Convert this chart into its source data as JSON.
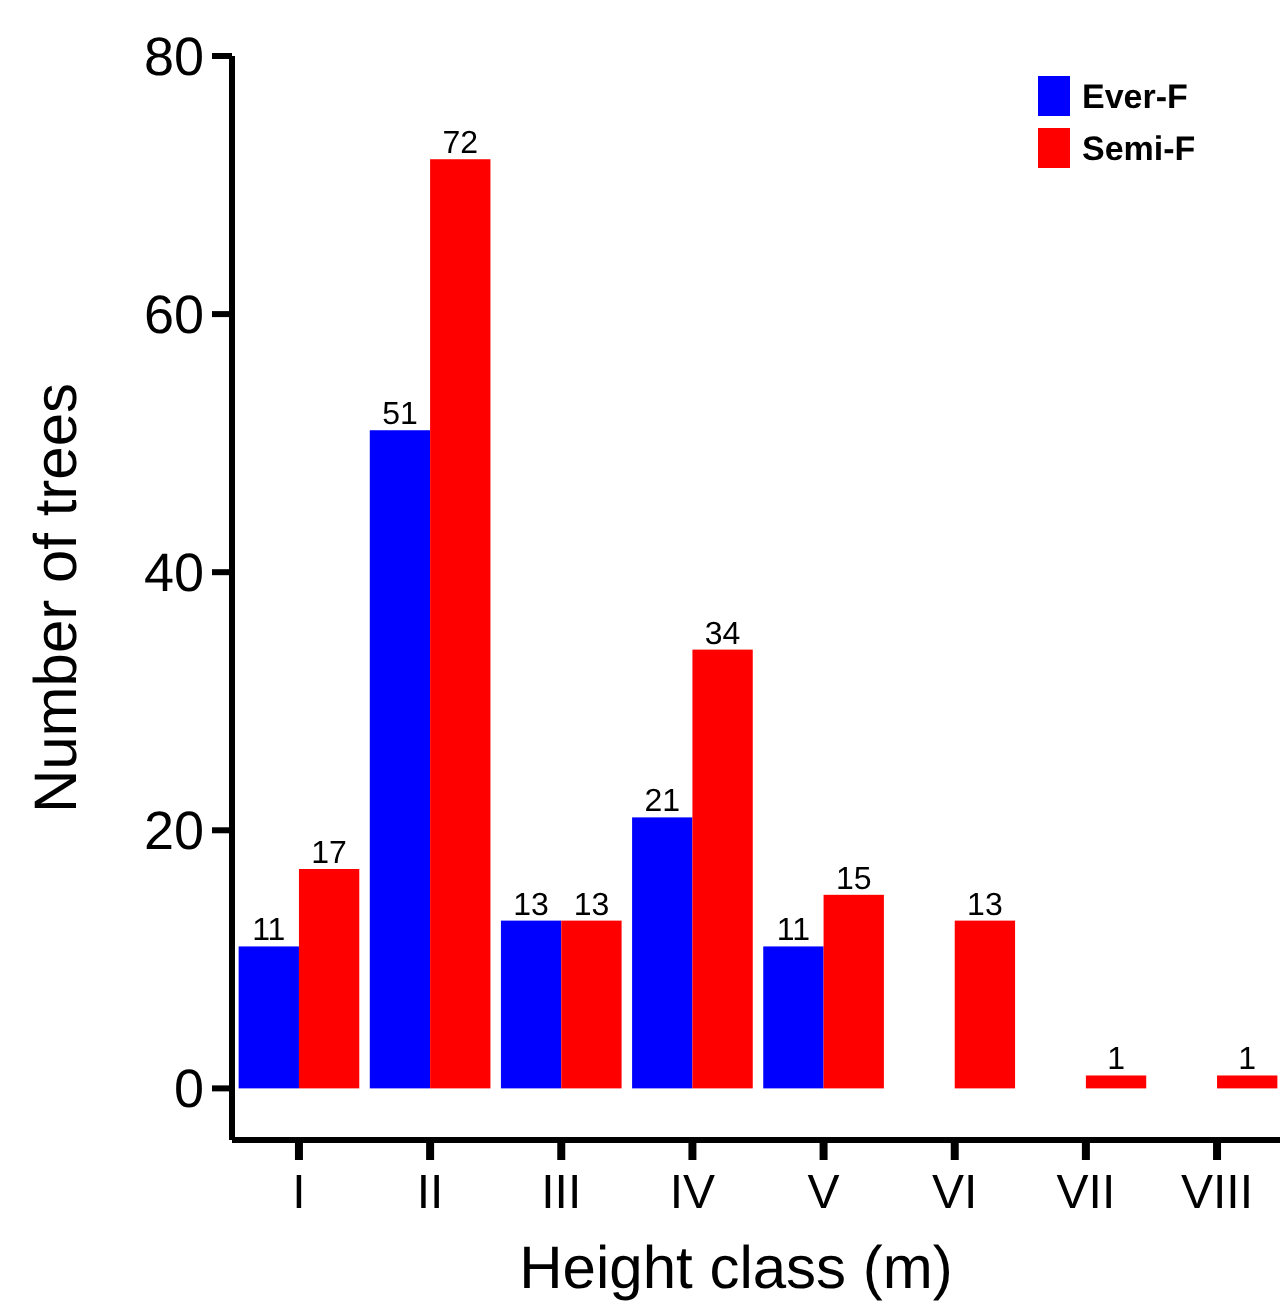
{
  "chart_data": {
    "type": "bar",
    "xlabel": "Height class (m)",
    "ylabel": "Number of trees",
    "categories": [
      "I",
      "II",
      "III",
      "IV",
      "V",
      "VI",
      "VII",
      "VIII"
    ],
    "series": [
      {
        "name": "Ever-F",
        "color": "#0000ff",
        "values": [
          11,
          51,
          13,
          21,
          11,
          null,
          null,
          null
        ]
      },
      {
        "name": "Semi-F",
        "color": "#ff0000",
        "values": [
          17,
          72,
          13,
          34,
          15,
          13,
          1,
          1
        ]
      }
    ],
    "ylim": [
      -4,
      80
    ],
    "yticks": [
      0,
      20,
      40,
      60,
      80
    ],
    "grid": false,
    "legend": "top right",
    "data_labels": true
  }
}
